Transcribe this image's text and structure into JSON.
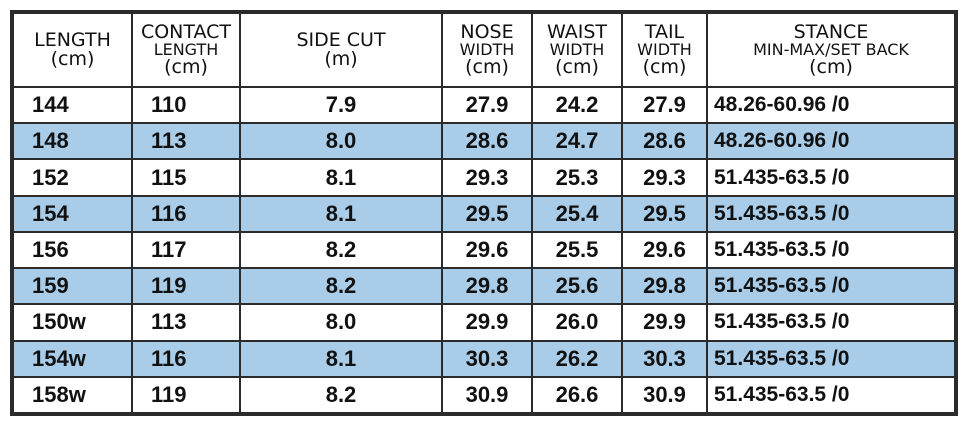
{
  "table": {
    "header": [
      [
        "LENGTH",
        "(cm)"
      ],
      [
        "CONTACT",
        "LENGTH",
        "(cm)"
      ],
      [
        "SIDE CUT",
        "(m)"
      ],
      [
        "NOSE",
        "WIDTH",
        "(cm)"
      ],
      [
        "WAIST",
        "WIDTH",
        "(cm)"
      ],
      [
        "TAIL",
        "WIDTH",
        "(cm)"
      ],
      [
        "STANCE",
        "MIN-MAX/SET BACK",
        "(cm)"
      ]
    ],
    "rows": [
      [
        "144",
        "110",
        "7.9",
        "27.9",
        "24.2",
        "27.9",
        "48.26-60.96 /0"
      ],
      [
        "148",
        "113",
        "8.0",
        "28.6",
        "24.7",
        "28.6",
        "48.26-60.96 /0"
      ],
      [
        "152",
        "115",
        "8.1",
        "29.3",
        "25.3",
        "29.3",
        "51.435-63.5 /0"
      ],
      [
        "154",
        "116",
        "8.1",
        "29.5",
        "25.4",
        "29.5",
        "51.435-63.5 /0"
      ],
      [
        "156",
        "117",
        "8.2",
        "29.6",
        "25.5",
        "29.6",
        "51.435-63.5 /0"
      ],
      [
        "159",
        "119",
        "8.2",
        "29.8",
        "25.6",
        "29.8",
        "51.435-63.5 /0"
      ],
      [
        "150w",
        "113",
        "8.0",
        "29.9",
        "26.0",
        "29.9",
        "51.435-63.5 /0"
      ],
      [
        "154w",
        "116",
        "8.1",
        "30.3",
        "26.2",
        "30.3",
        "51.435-63.5 /0"
      ],
      [
        "158w",
        "119",
        "8.2",
        "30.9",
        "26.6",
        "30.9",
        "51.435-63.5 /0"
      ]
    ]
  }
}
